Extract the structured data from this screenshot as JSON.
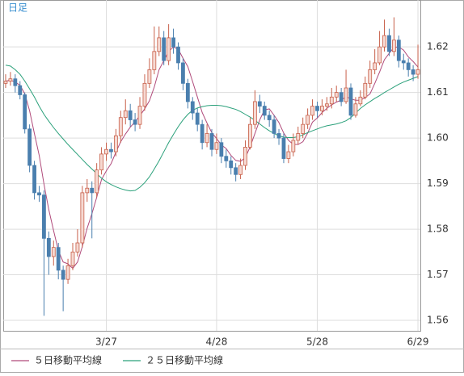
{
  "chart_data": {
    "type": "candlestick",
    "label": "日足",
    "categories": [
      null,
      null,
      null,
      null,
      null,
      null,
      null,
      null,
      null,
      null,
      null,
      null,
      null,
      null,
      null,
      null,
      null,
      null,
      null,
      null,
      null,
      "3/27",
      null,
      null,
      null,
      null,
      null,
      null,
      null,
      null,
      null,
      null,
      null,
      null,
      null,
      null,
      null,
      null,
      null,
      null,
      null,
      null,
      null,
      null,
      "4/28",
      null,
      null,
      null,
      null,
      null,
      null,
      null,
      null,
      null,
      null,
      null,
      null,
      null,
      null,
      null,
      null,
      null,
      null,
      null,
      null,
      "5/28",
      null,
      null,
      null,
      null,
      null,
      null,
      null,
      null,
      null,
      null,
      null,
      null,
      null,
      null,
      null,
      null,
      null,
      null,
      null,
      null,
      "6/29"
    ],
    "open": [
      1.612,
      1.6125,
      1.613,
      1.6115,
      1.6095,
      1.602,
      1.594,
      1.588,
      1.5875,
      1.578,
      1.574,
      1.576,
      1.571,
      1.569,
      1.572,
      1.575,
      1.577,
      1.588,
      1.589,
      1.588,
      1.593,
      1.5965,
      1.5975,
      1.597,
      1.6005,
      1.6045,
      1.606,
      1.604,
      1.603,
      1.607,
      1.612,
      1.615,
      1.619,
      1.622,
      1.617,
      1.622,
      1.62,
      1.6165,
      1.612,
      1.608,
      1.6055,
      1.603,
      1.599,
      1.601,
      1.5975,
      1.599,
      1.596,
      1.595,
      1.5935,
      1.592,
      1.594,
      1.598,
      1.603,
      1.608,
      1.607,
      1.605,
      1.604,
      1.601,
      1.6,
      1.5955,
      1.597,
      1.5995,
      1.601,
      1.603,
      1.605,
      1.607,
      1.606,
      1.607,
      1.6075,
      1.609,
      1.61,
      1.608,
      1.611,
      1.605,
      1.6075,
      1.609,
      1.612,
      1.615,
      1.6165,
      1.62,
      1.6225,
      1.619,
      1.6215,
      1.617,
      1.6165,
      1.615,
      1.614
    ],
    "high": [
      1.614,
      1.6145,
      1.614,
      1.6125,
      1.61,
      1.603,
      1.595,
      1.5895,
      1.5885,
      1.5795,
      1.5775,
      1.577,
      1.572,
      1.5735,
      1.577,
      1.58,
      1.5895,
      1.591,
      1.5905,
      1.5945,
      1.598,
      1.599,
      1.599,
      1.602,
      1.606,
      1.6085,
      1.6075,
      1.6055,
      1.609,
      1.614,
      1.6175,
      1.6245,
      1.6245,
      1.6235,
      1.625,
      1.624,
      1.621,
      1.6175,
      1.613,
      1.609,
      1.6065,
      1.604,
      1.603,
      1.602,
      1.601,
      1.6,
      1.5975,
      1.596,
      1.5945,
      1.5955,
      1.5995,
      1.6045,
      1.6105,
      1.6095,
      1.608,
      1.606,
      1.605,
      1.602,
      1.601,
      1.5985,
      1.601,
      1.6025,
      1.6045,
      1.6065,
      1.6085,
      1.608,
      1.6085,
      1.609,
      1.611,
      1.6115,
      1.611,
      1.615,
      1.612,
      1.609,
      1.6105,
      1.6135,
      1.617,
      1.6195,
      1.6235,
      1.626,
      1.624,
      1.6265,
      1.6225,
      1.6185,
      1.6175,
      1.616,
      1.6205
    ],
    "low": [
      1.611,
      1.6115,
      1.61,
      1.6085,
      1.601,
      1.5925,
      1.5865,
      1.586,
      1.561,
      1.57,
      1.572,
      1.569,
      1.562,
      1.568,
      1.571,
      1.574,
      1.576,
      1.586,
      1.578,
      1.587,
      1.592,
      1.595,
      1.5955,
      1.596,
      1.599,
      1.603,
      1.6025,
      1.6015,
      1.602,
      1.606,
      1.611,
      1.614,
      1.618,
      1.616,
      1.616,
      1.6185,
      1.615,
      1.6105,
      1.6065,
      1.604,
      1.6015,
      1.5975,
      1.598,
      1.596,
      1.5965,
      1.5945,
      1.5935,
      1.592,
      1.5905,
      1.591,
      1.593,
      1.5975,
      1.602,
      1.6055,
      1.604,
      1.6025,
      1.6,
      1.5985,
      1.5945,
      1.5945,
      1.596,
      1.5985,
      1.6,
      1.602,
      1.604,
      1.6045,
      1.605,
      1.606,
      1.6065,
      1.608,
      1.607,
      1.6075,
      1.604,
      1.6045,
      1.607,
      1.6085,
      1.611,
      1.614,
      1.616,
      1.619,
      1.618,
      1.618,
      1.6155,
      1.615,
      1.6135,
      1.6125,
      1.613
    ],
    "close": [
      1.6125,
      1.613,
      1.6115,
      1.6095,
      1.602,
      1.594,
      1.588,
      1.5875,
      1.578,
      1.574,
      1.576,
      1.571,
      1.569,
      1.572,
      1.575,
      1.577,
      1.588,
      1.589,
      1.588,
      1.593,
      1.5965,
      1.5975,
      1.597,
      1.6005,
      1.6045,
      1.606,
      1.604,
      1.603,
      1.607,
      1.612,
      1.615,
      1.619,
      1.622,
      1.617,
      1.622,
      1.62,
      1.6165,
      1.612,
      1.608,
      1.6055,
      1.603,
      1.599,
      1.601,
      1.5975,
      1.599,
      1.596,
      1.595,
      1.5935,
      1.592,
      1.594,
      1.598,
      1.603,
      1.608,
      1.607,
      1.605,
      1.604,
      1.601,
      1.6,
      1.5955,
      1.597,
      1.5995,
      1.601,
      1.603,
      1.605,
      1.607,
      1.606,
      1.607,
      1.6075,
      1.609,
      1.61,
      1.608,
      1.611,
      1.605,
      1.6075,
      1.609,
      1.612,
      1.615,
      1.6165,
      1.62,
      1.6225,
      1.619,
      1.6215,
      1.617,
      1.6165,
      1.615,
      1.614,
      1.615
    ],
    "up_color": "#c8604a",
    "up_fill": "#f6d9d2",
    "down_color": "#4a7fae",
    "series": [
      {
        "name": "５日移動平均線",
        "color": "#b04a7a",
        "values": [
          1.6125,
          1.6127,
          1.6123,
          1.6116,
          1.6097,
          1.606,
          1.601,
          1.5962,
          1.5899,
          1.5843,
          1.5797,
          1.5753,
          1.5728,
          1.5724,
          1.5714,
          1.5728,
          1.5762,
          1.5802,
          1.5834,
          1.587,
          1.5909,
          1.5928,
          1.5944,
          1.5969,
          1.5992,
          1.6009,
          1.6024,
          1.6036,
          1.6049,
          1.6064,
          1.6082,
          1.6112,
          1.615,
          1.617,
          1.619,
          1.62,
          1.6195,
          1.6175,
          1.6157,
          1.6124,
          1.609,
          1.6056,
          1.6033,
          1.6012,
          1.5999,
          1.5985,
          1.5977,
          1.5962,
          1.5951,
          1.5949,
          1.5957,
          1.5981,
          1.601,
          1.604,
          1.6062,
          1.6064,
          1.605,
          1.6034,
          1.6011,
          1.5995,
          1.5986,
          1.5986,
          1.5992,
          1.6011,
          1.6035,
          1.6044,
          1.6056,
          1.6065,
          1.6073,
          1.6079,
          1.6083,
          1.6091,
          1.6086,
          1.6083,
          1.6083,
          1.6089,
          1.6097,
          1.612,
          1.6145,
          1.6172,
          1.6186,
          1.6199,
          1.62,
          1.6193,
          1.6178,
          1.6168,
          1.6156
        ]
      },
      {
        "name": "２５日移動平均線",
        "color": "#2aa07a",
        "values": [
          1.616,
          1.6158,
          1.615,
          1.614,
          1.6125,
          1.6108,
          1.609,
          1.607,
          1.6052,
          1.6037,
          1.6023,
          1.601,
          1.5998,
          1.5986,
          1.5975,
          1.5964,
          1.5953,
          1.5942,
          1.5932,
          1.5922,
          1.5912,
          1.5904,
          1.5898,
          1.5893,
          1.5889,
          1.5886,
          1.5884,
          1.5885,
          1.5892,
          1.5902,
          1.5915,
          1.5932,
          1.595,
          1.597,
          1.599,
          1.6008,
          1.6025,
          1.604,
          1.6052,
          1.6061,
          1.6066,
          1.6069,
          1.6071,
          1.6072,
          1.6072,
          1.6071,
          1.6069,
          1.6066,
          1.6063,
          1.6058,
          1.6052,
          1.6046,
          1.6039,
          1.6031,
          1.6023,
          1.6016,
          1.601,
          1.6005,
          1.6002,
          1.6001,
          1.6001,
          1.6003,
          1.6007,
          1.6012,
          1.6016,
          1.602,
          1.6024,
          1.6027,
          1.6029,
          1.6031,
          1.6034,
          1.6038,
          1.6045,
          1.6055,
          1.6065,
          1.6073,
          1.608,
          1.6087,
          1.6093,
          1.61,
          1.6106,
          1.6112,
          1.6118,
          1.6123,
          1.6127,
          1.6131,
          1.6135
        ]
      }
    ],
    "ylim": [
      1.5577,
      1.6303
    ],
    "yticks": [
      1.56,
      1.57,
      1.58,
      1.59,
      {
        "value": 1.6,
        "label": "1.60"
      },
      1.61,
      1.62
    ],
    "grid": true
  }
}
